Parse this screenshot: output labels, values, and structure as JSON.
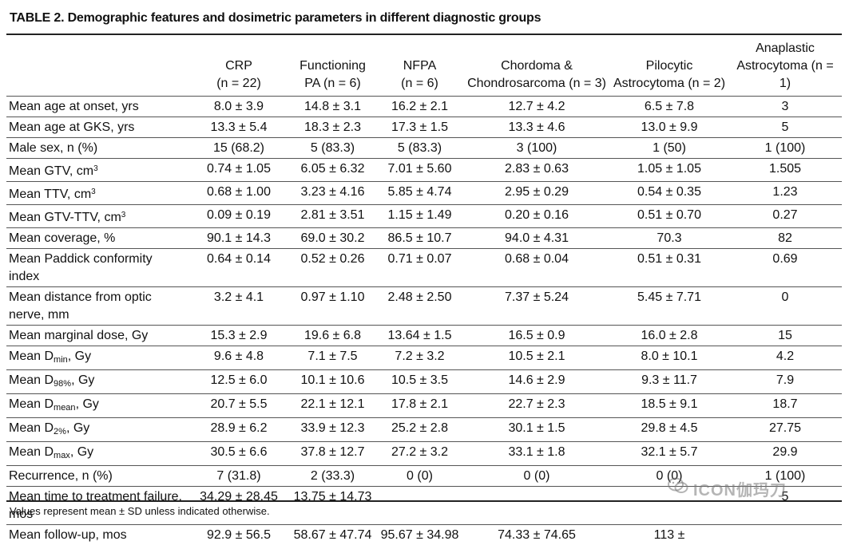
{
  "title": "TABLE 2. Demographic features and dosimetric parameters in different diagnostic groups",
  "columns": [
    {
      "line1": "",
      "line2": ""
    },
    {
      "line1": "CRP",
      "line2": "(n = 22)"
    },
    {
      "line1": "Functioning",
      "line2": "PA (n = 6)"
    },
    {
      "line1": "NFPA",
      "line2": "(n = 6)"
    },
    {
      "line1": "Chordoma &",
      "line2": "Chondrosarcoma (n = 3)"
    },
    {
      "line1": "Pilocytic",
      "line2": "Astrocytoma (n = 2)"
    },
    {
      "line1": "Anaplastic",
      "line2": "Astrocytoma (n = 1)"
    }
  ],
  "rows": [
    {
      "label": "Mean age at onset, yrs",
      "v": [
        "8.0 ± 3.9",
        "14.8 ± 3.1",
        "16.2 ± 2.1",
        "12.7 ± 4.2",
        "6.5 ± 7.8",
        "3"
      ]
    },
    {
      "label": "Mean age at GKS, yrs",
      "v": [
        "13.3 ± 5.4",
        "18.3 ± 2.3",
        "17.3 ± 1.5",
        "13.3 ± 4.6",
        "13.0 ± 9.9",
        "5"
      ]
    },
    {
      "label": "Male sex, n (%)",
      "v": [
        "15 (68.2)",
        "5 (83.3)",
        "5 (83.3)",
        "3 (100)",
        "1 (50)",
        "1 (100)"
      ]
    },
    {
      "label": "Mean GTV, cm",
      "sup": "3",
      "v": [
        "0.74 ± 1.05",
        "6.05 ± 6.32",
        "7.01 ± 5.60",
        "2.83 ± 0.63",
        "1.05 ± 1.05",
        "1.505"
      ]
    },
    {
      "label": "Mean TTV, cm",
      "sup": "3",
      "v": [
        "0.68 ± 1.00",
        "3.23 ± 4.16",
        "5.85 ± 4.74",
        "2.95 ± 0.29",
        "0.54 ± 0.35",
        "1.23"
      ]
    },
    {
      "label": "Mean GTV-TTV, cm",
      "sup": "3",
      "v": [
        "0.09 ± 0.19",
        "2.81 ± 3.51",
        "1.15 ± 1.49",
        "0.20 ± 0.16",
        "0.51 ± 0.70",
        "0.27"
      ]
    },
    {
      "label": "Mean coverage, %",
      "v": [
        "90.1 ± 14.3",
        "69.0 ± 30.2",
        "86.5 ± 10.7",
        "94.0 ± 4.31",
        "70.3",
        "82"
      ]
    },
    {
      "label": "Mean Paddick conformity index",
      "v": [
        "0.64 ± 0.14",
        "0.52 ± 0.26",
        "0.71 ± 0.07",
        "0.68 ± 0.04",
        "0.51 ± 0.31",
        "0.69"
      ]
    },
    {
      "label": "Mean distance from optic nerve, mm",
      "v": [
        "3.2 ± 4.1",
        "0.97 ± 1.10",
        "2.48 ± 2.50",
        "7.37 ± 5.24",
        "5.45 ± 7.71",
        "0"
      ]
    },
    {
      "label": "Mean marginal dose, Gy",
      "v": [
        "15.3 ± 2.9",
        "19.6 ± 6.8",
        "13.64 ± 1.5",
        "16.5 ± 0.9",
        "16.0 ± 2.8",
        "15"
      ]
    },
    {
      "label": "Mean D",
      "sub": "min",
      "tail": ", Gy",
      "v": [
        "9.6 ± 4.8",
        "7.1 ± 7.5",
        "7.2 ± 3.2",
        "10.5 ± 2.1",
        "8.0 ± 10.1",
        "4.2"
      ]
    },
    {
      "label": "Mean D",
      "sub": "98%",
      "tail": ", Gy",
      "v": [
        "12.5 ± 6.0",
        "10.1 ± 10.6",
        "10.5 ± 3.5",
        "14.6 ± 2.9",
        "9.3 ± 11.7",
        "7.9"
      ]
    },
    {
      "label": "Mean D",
      "sub": "mean",
      "tail": ", Gy",
      "v": [
        "20.7 ± 5.5",
        "22.1 ± 12.1",
        "17.8 ± 2.1",
        "22.7 ± 2.3",
        "18.5 ± 9.1",
        "18.7"
      ]
    },
    {
      "label": "Mean D",
      "sub": "2%",
      "tail": ", Gy",
      "v": [
        "28.9 ± 6.2",
        "33.9 ± 12.3",
        "25.2 ± 2.8",
        "30.1 ± 1.5",
        "29.8 ± 4.5",
        "27.75"
      ]
    },
    {
      "label": "Mean D",
      "sub": "max",
      "tail": ", Gy",
      "v": [
        "30.5 ± 6.6",
        "37.8 ± 12.7",
        "27.2 ± 3.2",
        "33.1 ± 1.8",
        "32.1 ± 5.7",
        "29.9"
      ]
    },
    {
      "label": "Recurrence, n (%)",
      "v": [
        "7 (31.8)",
        "2 (33.3)",
        "0 (0)",
        "0 (0)",
        "0 (0)",
        "1 (100)"
      ]
    },
    {
      "label": "Mean time to treatment failure, mos",
      "v": [
        "34.29 ± 28.45",
        "13.75 ± 14.73",
        "",
        "",
        "",
        "5"
      ]
    },
    {
      "label": "Mean follow-up, mos",
      "v": [
        "92.9 ± 56.5",
        "58.67 ± 47.74",
        "95.67 ± 34.98",
        "74.33 ± 74.65",
        "113 ± ",
        ""
      ]
    }
  ],
  "footnote": "Values represent mean ± SD unless indicated otherwise.",
  "watermark": {
    "text": "ICON伽玛刀",
    "icon": "wechat-icon"
  }
}
